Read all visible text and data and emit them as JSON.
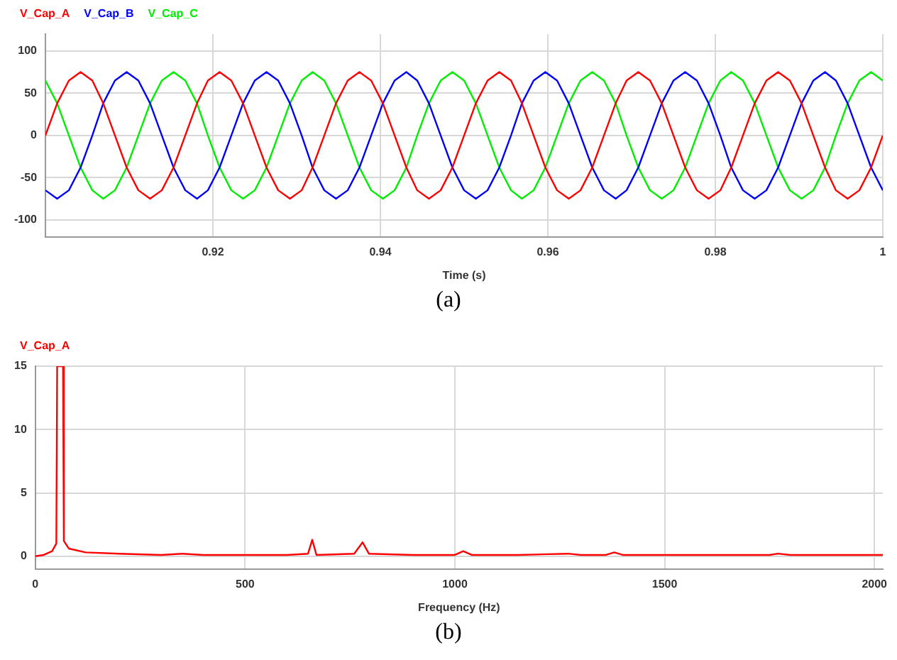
{
  "chart_data": [
    {
      "type": "line",
      "xlabel": "Time (s)",
      "annotations": [
        "(a)"
      ],
      "legend": "top left",
      "grid": true,
      "marker": "none",
      "line_style": "solid",
      "x": [
        0.9,
        0.9014,
        0.9028,
        0.9042,
        0.9056,
        0.9069,
        0.9083,
        0.9097,
        0.9111,
        0.9125,
        0.9139,
        0.9153,
        0.9167,
        0.9181,
        0.9194,
        0.9208,
        0.9222,
        0.9236,
        0.925,
        0.9264,
        0.9278,
        0.9292,
        0.9306,
        0.9319,
        0.9333,
        0.9347,
        0.9361,
        0.9375,
        0.9389,
        0.9403,
        0.9417,
        0.9431,
        0.9444,
        0.9458,
        0.9472,
        0.9486,
        0.95,
        0.9514,
        0.9528,
        0.9542,
        0.9556,
        0.9569,
        0.9583,
        0.9597,
        0.9611,
        0.9625,
        0.9639,
        0.9653,
        0.9667,
        0.9681,
        0.9694,
        0.9708,
        0.9722,
        0.9736,
        0.975,
        0.9764,
        0.9778,
        0.9792,
        0.9806,
        0.9819,
        0.9833,
        0.9847,
        0.9861,
        0.9875,
        0.9889,
        0.9903,
        0.9917,
        0.9931,
        0.9944,
        0.9958,
        0.9972,
        0.9986,
        1.0
      ],
      "xlim": [
        0.9,
        1
      ],
      "xticks": [
        0.92,
        0.94,
        0.96,
        0.98,
        1
      ],
      "ylim": [
        -120,
        120
      ],
      "yticks": [
        -100,
        -50,
        0,
        50,
        100
      ],
      "series": [
        {
          "name": "V_Cap_A",
          "color": "#ff0000",
          "values": [
            0,
            38,
            65,
            75,
            65,
            38,
            0,
            -38,
            -65,
            -75,
            -65,
            -38,
            0,
            38,
            65,
            75,
            65,
            38,
            0,
            -38,
            -65,
            -75,
            -65,
            -38,
            0,
            38,
            65,
            75,
            65,
            38,
            0,
            -38,
            -65,
            -75,
            -65,
            -38,
            0,
            38,
            65,
            75,
            65,
            38,
            0,
            -38,
            -65,
            -75,
            -65,
            -38,
            0,
            38,
            65,
            75,
            65,
            38,
            0,
            -38,
            -65,
            -75,
            -65,
            -38,
            0,
            38,
            65,
            75,
            65,
            38,
            0,
            -38,
            -65,
            -75,
            -65,
            -38,
            0
          ]
        },
        {
          "name": "V_Cap_B",
          "color": "#0000ff",
          "values": [
            -65,
            -75,
            -65,
            -38,
            0,
            38,
            65,
            75,
            65,
            38,
            0,
            -38,
            -65,
            -75,
            -65,
            -38,
            0,
            38,
            65,
            75,
            65,
            38,
            0,
            -38,
            -65,
            -75,
            -65,
            -38,
            0,
            38,
            65,
            75,
            65,
            38,
            0,
            -38,
            -65,
            -75,
            -65,
            -38,
            0,
            38,
            65,
            75,
            65,
            38,
            0,
            -38,
            -65,
            -75,
            -65,
            -38,
            0,
            38,
            65,
            75,
            65,
            38,
            0,
            -38,
            -65,
            -75,
            -65,
            -38,
            0,
            38,
            65,
            75,
            65,
            38,
            0,
            -38,
            -65
          ]
        },
        {
          "name": "V_Cap_C",
          "color": "#00ee00",
          "values": [
            65,
            38,
            0,
            -38,
            -65,
            -75,
            -65,
            -38,
            0,
            38,
            65,
            75,
            65,
            38,
            0,
            -38,
            -65,
            -75,
            -65,
            -38,
            0,
            38,
            65,
            75,
            65,
            38,
            0,
            -38,
            -65,
            -75,
            -65,
            -38,
            0,
            38,
            65,
            75,
            65,
            38,
            0,
            -38,
            -65,
            -75,
            -65,
            -38,
            0,
            38,
            65,
            75,
            65,
            38,
            0,
            -38,
            -65,
            -75,
            -65,
            -38,
            0,
            38,
            65,
            75,
            65,
            38,
            0,
            -38,
            -65,
            -75,
            -65,
            -38,
            0,
            38,
            65,
            75,
            65
          ]
        }
      ]
    },
    {
      "type": "line",
      "xlabel": "Frequency (Hz)",
      "annotations": [
        "(b)"
      ],
      "legend": "top left",
      "grid": true,
      "marker": "none",
      "line_style": "solid",
      "x": [
        0,
        20,
        40,
        50,
        52,
        66,
        68,
        80,
        120,
        200,
        300,
        350,
        400,
        500,
        600,
        650,
        660,
        670,
        760,
        780,
        795,
        900,
        1000,
        1020,
        1040,
        1150,
        1270,
        1300,
        1360,
        1380,
        1400,
        1600,
        1750,
        1770,
        1800,
        2020
      ],
      "xlim": [
        0,
        2020
      ],
      "xticks": [
        0,
        500,
        1000,
        1500,
        2000
      ],
      "ylim": [
        -1,
        15
      ],
      "yticks": [
        0,
        5,
        10,
        15
      ],
      "series": [
        {
          "name": "V_Cap_A",
          "color": "#ff0000",
          "values": [
            0,
            0.1,
            0.4,
            1,
            15,
            15,
            1.2,
            0.6,
            0.3,
            0.2,
            0.1,
            0.2,
            0.1,
            0.1,
            0.1,
            0.2,
            1.3,
            0.1,
            0.2,
            1.1,
            0.2,
            0.1,
            0.1,
            0.4,
            0.1,
            0.1,
            0.2,
            0.1,
            0.1,
            0.3,
            0.1,
            0.1,
            0.1,
            0.2,
            0.1,
            0.1
          ]
        }
      ]
    }
  ]
}
